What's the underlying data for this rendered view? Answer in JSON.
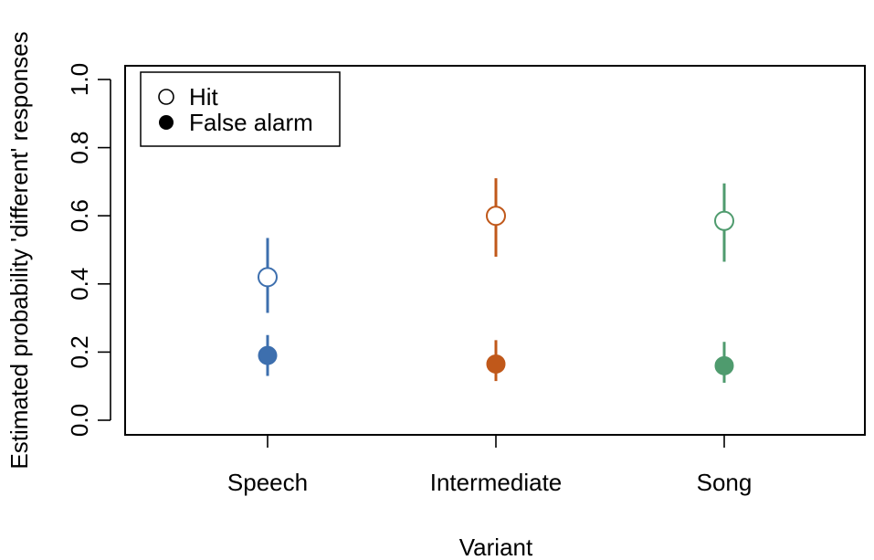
{
  "chart_data": {
    "type": "scatter",
    "xlabel": "Variant",
    "ylabel": "Estimated probability 'different' responses",
    "categories": [
      "Speech",
      "Intermediate",
      "Song"
    ],
    "ylim": [
      0.0,
      1.0
    ],
    "yticks": [
      "0.0",
      "0.2",
      "0.4",
      "0.6",
      "0.8",
      "1.0"
    ],
    "grid": false,
    "legend": {
      "placement": "top-left",
      "entries": [
        "Hit",
        "False alarm"
      ]
    },
    "colors": [
      "#3d6fae",
      "#c0581a",
      "#4f9b6e"
    ],
    "series": [
      {
        "name": "Hit",
        "marker": "open-circle",
        "values": [
          0.42,
          0.6,
          0.585
        ],
        "lower": [
          0.315,
          0.48,
          0.465
        ],
        "upper": [
          0.535,
          0.71,
          0.695
        ]
      },
      {
        "name": "False alarm",
        "marker": "filled-circle",
        "values": [
          0.19,
          0.165,
          0.16
        ],
        "lower": [
          0.13,
          0.115,
          0.11
        ],
        "upper": [
          0.25,
          0.235,
          0.23
        ]
      }
    ]
  }
}
